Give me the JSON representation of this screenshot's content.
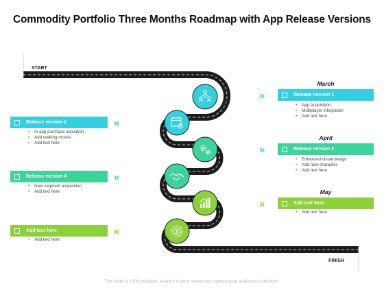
{
  "title": "Commodity Portfolio Three Months Roadmap with App Release Versions",
  "footer": "This slide is 100% editable. Adapt it to your needs and capture your audience's attention.",
  "road": {
    "start_label": "START",
    "finish_label": "FINISH"
  },
  "colors": {
    "cyan": "#36cfe0",
    "green": "#3ed39a",
    "lime": "#8dd13a",
    "road": "#1c1c1c"
  },
  "milestones": [
    {
      "icon": "team-network-icon",
      "color": "#36cfe0"
    },
    {
      "icon": "calendar-settings-icon",
      "color": "#36cfe0"
    },
    {
      "icon": "gears-icon",
      "color": "#3ed39a"
    },
    {
      "icon": "handshake-icon",
      "color": "#3ed39a"
    },
    {
      "icon": "growth-chart-icon",
      "color": "#8dd13a"
    },
    {
      "icon": "dollar-cycle-icon",
      "color": "#8dd13a"
    }
  ],
  "right_items": [
    {
      "month": "March",
      "label": "Release version 1",
      "color": "#36cfe0",
      "bullets": [
        "App Acquisition",
        "Multiplayer integration",
        "Add text here"
      ]
    },
    {
      "month": "April",
      "label": "Release version 3",
      "color": "#3ed39a",
      "bullets": [
        "Enhanced visual design",
        "Add new character",
        "Add text here"
      ]
    },
    {
      "month": "May",
      "label": "Add text here",
      "color": "#8dd13a",
      "bullets": [
        "Add text here"
      ]
    }
  ],
  "left_items": [
    {
      "label": "Release version 2",
      "color": "#36cfe0",
      "bullets": [
        "In app purchase activation",
        "Add walking moves",
        "Add text here"
      ]
    },
    {
      "label": "Release version 4",
      "color": "#3ed39a",
      "bullets": [
        "New segment acquisition",
        "Add text here"
      ]
    },
    {
      "label": "Add text here",
      "color": "#8dd13a",
      "bullets": [
        "Add text here"
      ]
    }
  ],
  "chevrons": {
    "right": "»",
    "left": "«"
  }
}
